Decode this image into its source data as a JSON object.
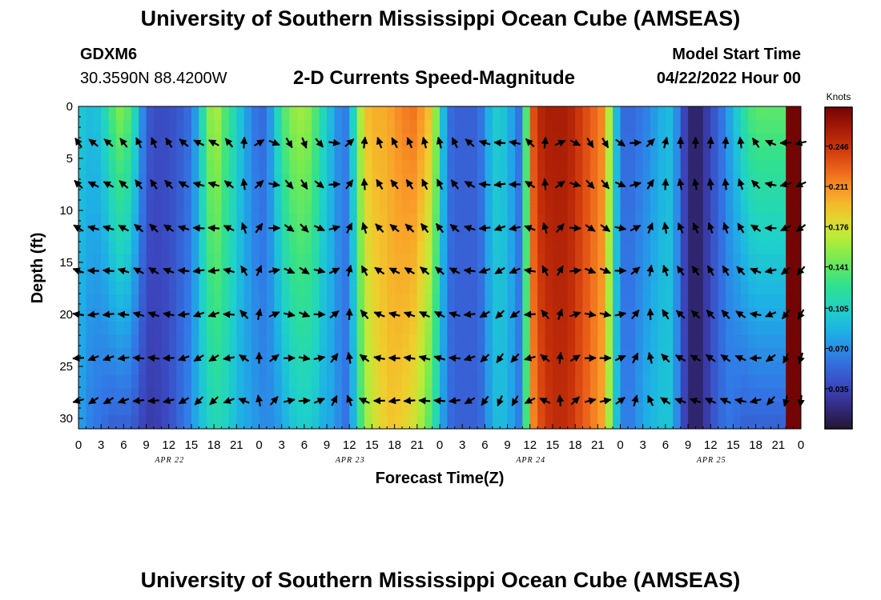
{
  "header": {
    "title": "University of Southern Mississippi Ocean Cube (AMSEAS)",
    "station_id": "GDXM6",
    "station_coords": "30.3590N  88.4200W",
    "plot_title": "2-D Currents Speed-Magnitude",
    "model_start_label": "Model Start Time",
    "model_start_value": "04/22/2022 Hour 00"
  },
  "footer": {
    "title": "University of Southern Mississippi Ocean Cube (AMSEAS)"
  },
  "chart_data": {
    "type": "heatmap",
    "title": "2-D Currents Speed-Magnitude",
    "xlabel": "Forecast Time(Z)",
    "ylabel": "Depth (ft)",
    "x_hours": [
      0,
      96
    ],
    "x_tick_labels": [
      "0",
      "3",
      "6",
      "9",
      "12",
      "15",
      "18",
      "21",
      "0",
      "3",
      "6",
      "9",
      "12",
      "15",
      "18",
      "21",
      "0",
      "3",
      "6",
      "9",
      "12",
      "15",
      "18",
      "21",
      "0",
      "3",
      "6",
      "9",
      "12",
      "15",
      "18",
      "21",
      "0"
    ],
    "date_labels": [
      {
        "label": "APR 22",
        "hour": 12
      },
      {
        "label": "APR 23",
        "hour": 36
      },
      {
        "label": "APR 24",
        "hour": 60
      },
      {
        "label": "APR 25",
        "hour": 84
      }
    ],
    "ylim": [
      0,
      31
    ],
    "y_ticks": [
      0,
      5,
      10,
      15,
      20,
      25,
      30
    ],
    "colorbar": {
      "label": "Knots",
      "range": [
        0,
        0.28
      ],
      "ticks": [
        "0.246",
        "0.211",
        "0.176",
        "0.141",
        "0.105",
        "0.070",
        "0.035"
      ],
      "tick_values": [
        0.246,
        0.211,
        0.176,
        0.141,
        0.105,
        0.07,
        0.035
      ]
    },
    "speed_column_profile": {
      "note": "approximate current speed (knots) per forecast hour at depth 0 ft and 31 ft (linear in between)",
      "hours": [
        0,
        2,
        3,
        4,
        5,
        6,
        7,
        8,
        9,
        10,
        12,
        14,
        15,
        16,
        17,
        18,
        19,
        20,
        21,
        22,
        23,
        24,
        25,
        26,
        27,
        28,
        29,
        30,
        31,
        32,
        33,
        34,
        35,
        36,
        37,
        38,
        39,
        40,
        41,
        42,
        44,
        45,
        46,
        47,
        48,
        49,
        50,
        51,
        52,
        53,
        54,
        55,
        56,
        57,
        58,
        59,
        60,
        61,
        62,
        63,
        64,
        65,
        66,
        67,
        68,
        69,
        70,
        71,
        72,
        73,
        74,
        75,
        76,
        77,
        78,
        79,
        80,
        81,
        82,
        83,
        84,
        85,
        86,
        87,
        88,
        89,
        90,
        91,
        92,
        93,
        94,
        95,
        96
      ],
      "top": [
        0.1,
        0.09,
        0.1,
        0.12,
        0.15,
        0.15,
        0.13,
        0.09,
        0.05,
        0.04,
        0.04,
        0.05,
        0.06,
        0.09,
        0.14,
        0.17,
        0.15,
        0.12,
        0.11,
        0.08,
        0.07,
        0.05,
        0.06,
        0.09,
        0.13,
        0.15,
        0.16,
        0.16,
        0.15,
        0.12,
        0.1,
        0.08,
        0.06,
        0.07,
        0.14,
        0.19,
        0.2,
        0.2,
        0.2,
        0.21,
        0.22,
        0.22,
        0.2,
        0.19,
        0.12,
        0.06,
        0.05,
        0.05,
        0.05,
        0.05,
        0.07,
        0.1,
        0.1,
        0.09,
        0.07,
        0.05,
        0.22,
        0.25,
        0.26,
        0.26,
        0.26,
        0.26,
        0.25,
        0.24,
        0.23,
        0.22,
        0.21,
        0.12,
        0.06,
        0.05,
        0.06,
        0.06,
        0.07,
        0.08,
        0.09,
        0.09,
        0.05,
        0.02,
        0.01,
        0.02,
        0.04,
        0.05,
        0.07,
        0.09,
        0.11,
        0.13,
        0.14,
        0.14,
        0.14,
        0.14,
        0.14
      ],
      "bottom": [
        0.08,
        0.06,
        0.06,
        0.05,
        0.05,
        0.05,
        0.05,
        0.04,
        0.03,
        0.03,
        0.04,
        0.06,
        0.07,
        0.09,
        0.1,
        0.11,
        0.11,
        0.1,
        0.09,
        0.08,
        0.08,
        0.07,
        0.07,
        0.07,
        0.08,
        0.09,
        0.1,
        0.1,
        0.1,
        0.09,
        0.08,
        0.08,
        0.06,
        0.06,
        0.11,
        0.15,
        0.17,
        0.18,
        0.19,
        0.19,
        0.18,
        0.17,
        0.15,
        0.13,
        0.09,
        0.06,
        0.05,
        0.05,
        0.05,
        0.05,
        0.06,
        0.09,
        0.09,
        0.09,
        0.07,
        0.06,
        0.2,
        0.23,
        0.24,
        0.25,
        0.25,
        0.25,
        0.24,
        0.23,
        0.22,
        0.21,
        0.2,
        0.12,
        0.07,
        0.06,
        0.07,
        0.08,
        0.09,
        0.09,
        0.1,
        0.09,
        0.05,
        0.02,
        0.01,
        0.02,
        0.04,
        0.05,
        0.06,
        0.06,
        0.05,
        0.05,
        0.05,
        0.05,
        0.05,
        0.05,
        0.05
      ]
    },
    "vector_depths_ft": [
      3.5,
      7.5,
      11.7,
      15.8,
      20.0,
      24.2,
      28.3
    ],
    "vector_hours": [
      0,
      2,
      4,
      6,
      8,
      10,
      12,
      14,
      16,
      18,
      20,
      22,
      24,
      26,
      28,
      30,
      32,
      34,
      36,
      38,
      40,
      42,
      44,
      46,
      48,
      50,
      52,
      54,
      56,
      58,
      60,
      62,
      64,
      66,
      68,
      70,
      72,
      74,
      76,
      78,
      80,
      82,
      84,
      86,
      88,
      90,
      92,
      94,
      96
    ]
  }
}
